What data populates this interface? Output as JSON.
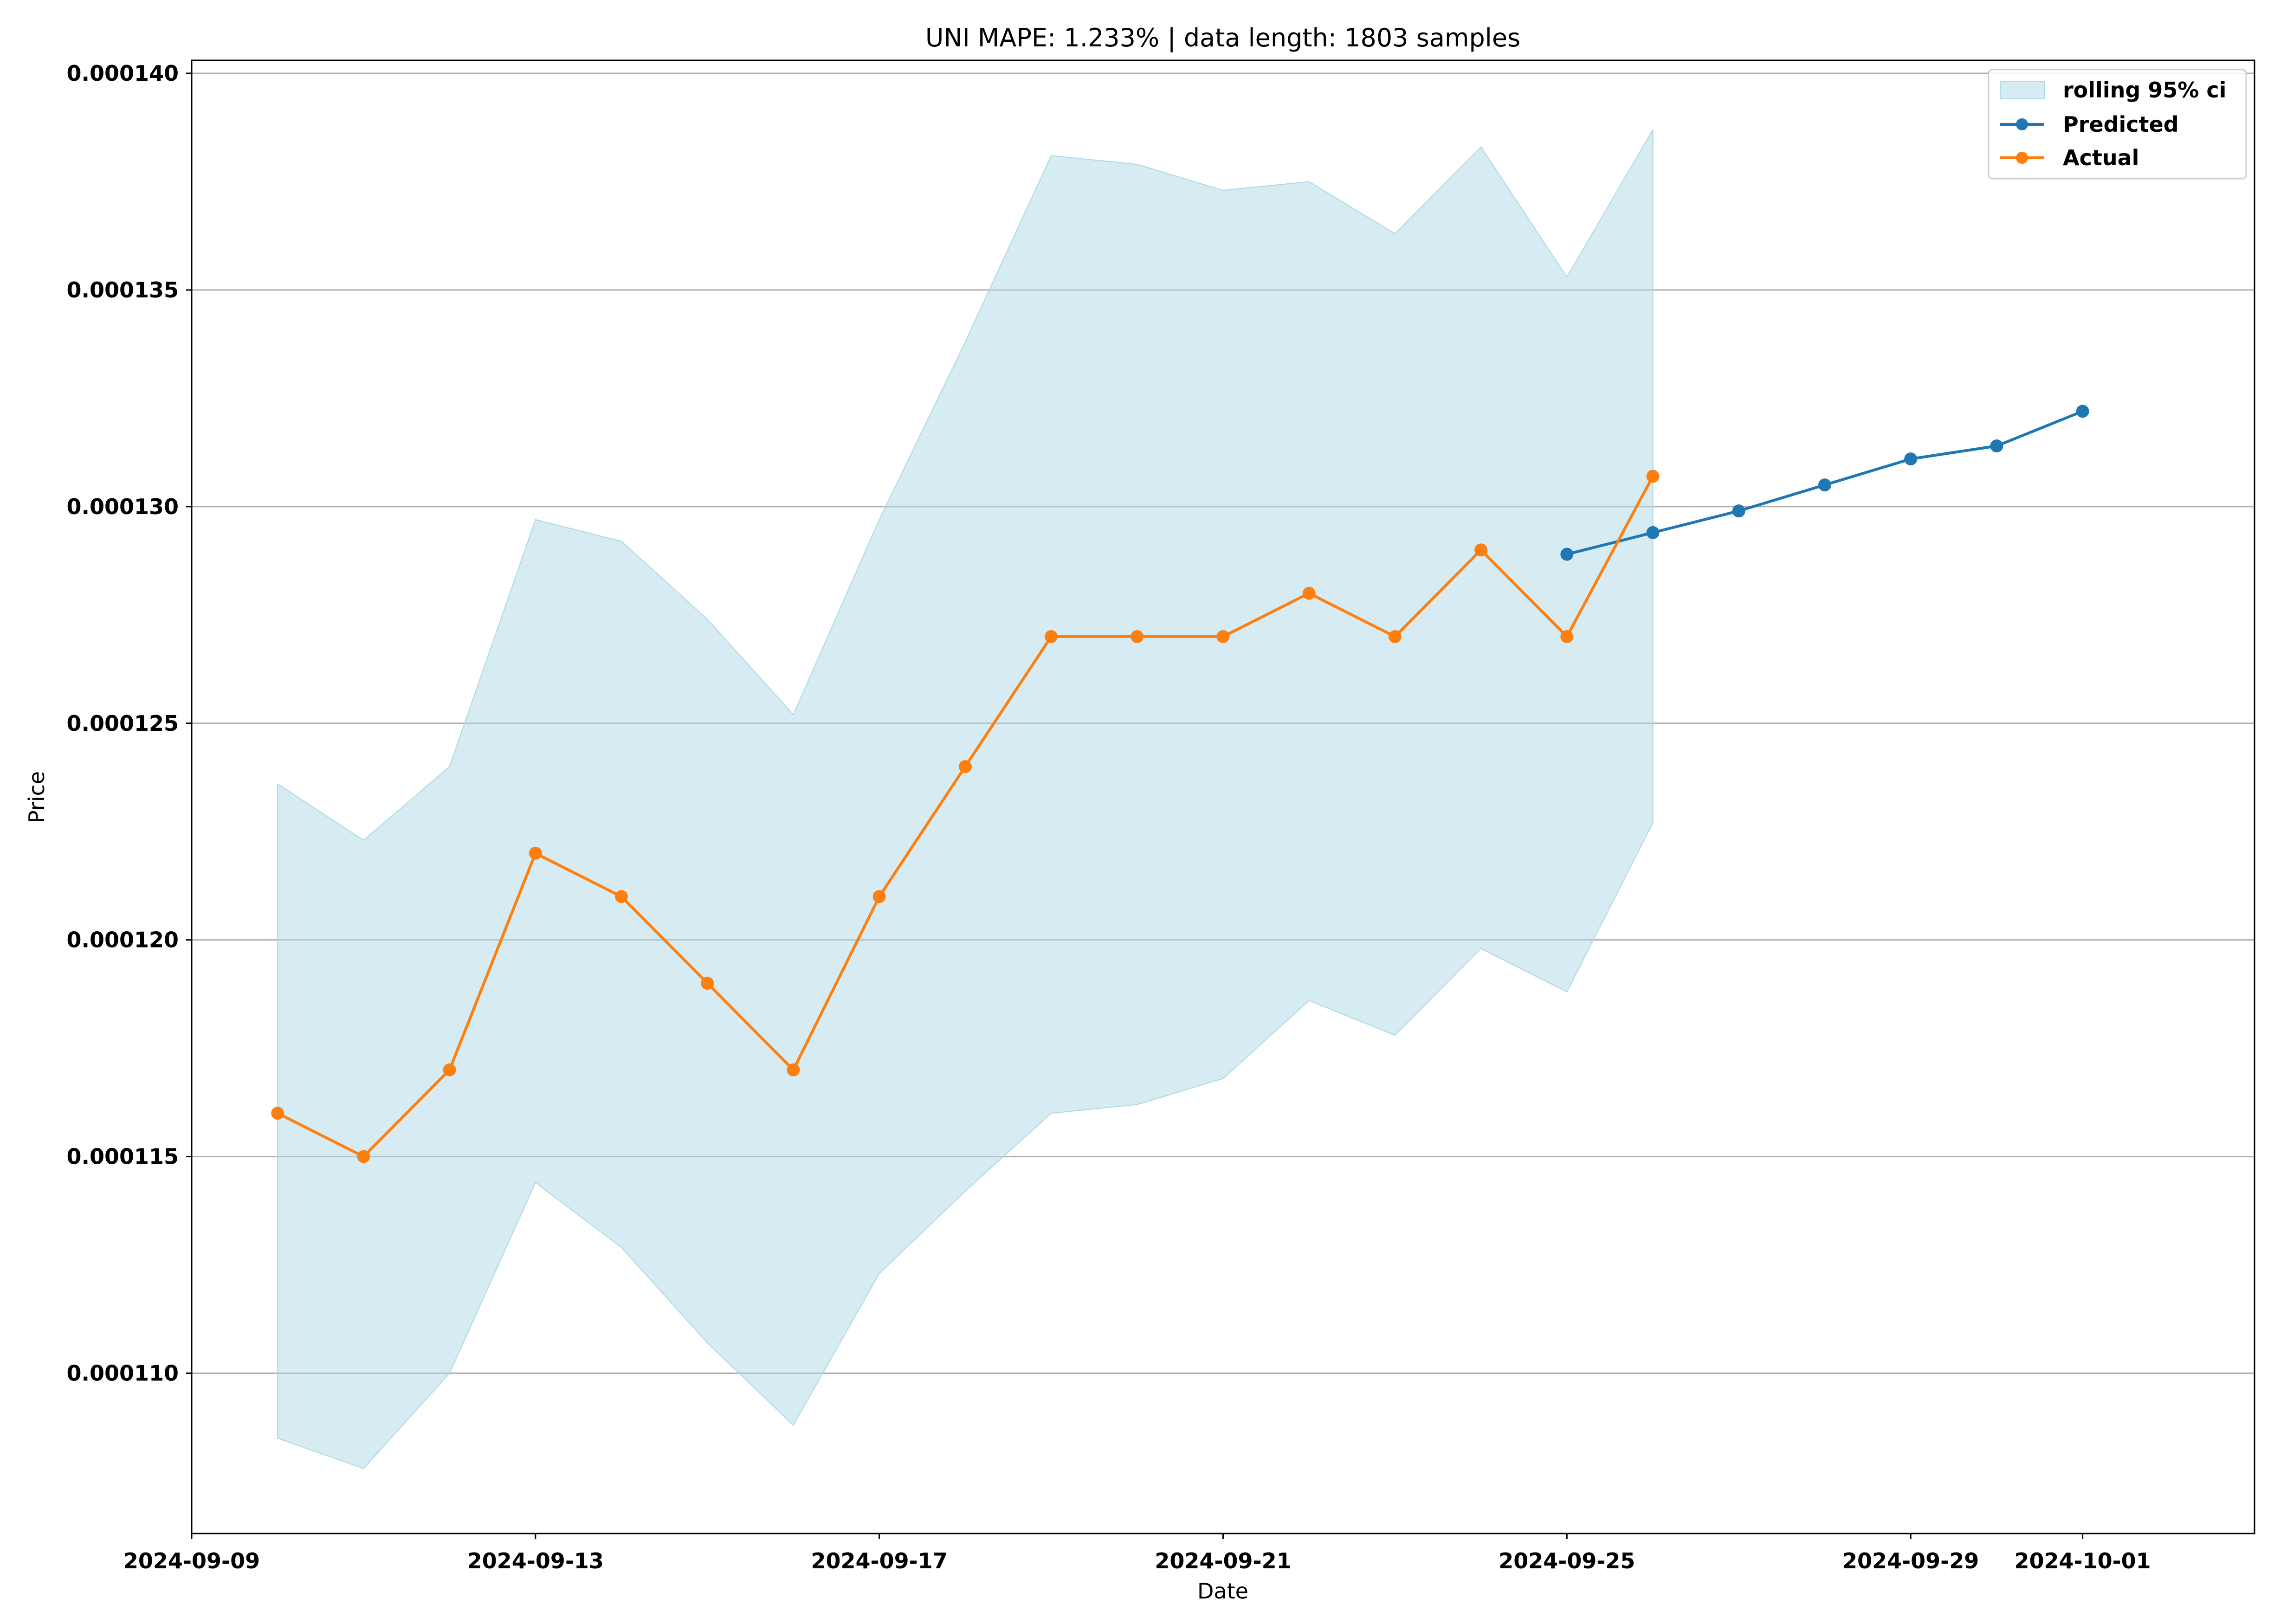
{
  "chart_data": {
    "type": "line",
    "title": "UNI MAPE: 1.233% | data length: 1803 samples",
    "xlabel": "Date",
    "ylabel": "Price",
    "xlim": [
      "2024-09-09",
      "2024-10-03"
    ],
    "ylim": [
      0.0001063,
      0.0001403
    ],
    "grid": "horizontal",
    "legend_position": "top-right",
    "x_ticks": [
      "2024-09-09",
      "2024-09-13",
      "2024-09-17",
      "2024-09-21",
      "2024-09-25",
      "2024-09-29",
      "2024-10-01"
    ],
    "y_ticks": [
      "0.000110",
      "0.000115",
      "0.000120",
      "0.000125",
      "0.000130",
      "0.000135",
      "0.000140"
    ],
    "colors": {
      "band": "#add8e6",
      "predicted": "#1f77b4",
      "actual": "#ff7f0e",
      "grid": "#b0b0b0"
    },
    "band": {
      "name": "rolling 95% ci",
      "x": [
        "2024-09-10",
        "2024-09-11",
        "2024-09-12",
        "2024-09-13",
        "2024-09-14",
        "2024-09-15",
        "2024-09-16",
        "2024-09-17",
        "2024-09-18",
        "2024-09-19",
        "2024-09-20",
        "2024-09-21",
        "2024-09-22",
        "2024-09-23",
        "2024-09-24",
        "2024-09-25",
        "2024-09-26"
      ],
      "lower": [
        0.0001085,
        0.0001078,
        0.00011,
        0.0001144,
        0.0001129,
        0.0001107,
        0.0001088,
        0.0001123,
        0.0001142,
        0.000116,
        0.0001162,
        0.0001168,
        0.0001186,
        0.0001178,
        0.0001198,
        0.0001188,
        0.0001227
      ],
      "upper": [
        0.0001236,
        0.0001223,
        0.000124,
        0.0001297,
        0.0001292,
        0.0001274,
        0.0001252,
        0.0001297,
        0.0001338,
        0.0001381,
        0.0001379,
        0.0001373,
        0.0001375,
        0.0001363,
        0.0001383,
        0.0001353,
        0.0001387
      ]
    },
    "series": [
      {
        "name": "Predicted",
        "x": [
          "2024-09-25",
          "2024-09-26",
          "2024-09-27",
          "2024-09-28",
          "2024-09-29",
          "2024-09-30",
          "2024-10-01"
        ],
        "values": [
          0.0001289,
          0.0001294,
          0.0001299,
          0.0001305,
          0.0001311,
          0.0001314,
          0.0001322
        ]
      },
      {
        "name": "Actual",
        "x": [
          "2024-09-10",
          "2024-09-11",
          "2024-09-12",
          "2024-09-13",
          "2024-09-14",
          "2024-09-15",
          "2024-09-16",
          "2024-09-17",
          "2024-09-18",
          "2024-09-19",
          "2024-09-20",
          "2024-09-21",
          "2024-09-22",
          "2024-09-23",
          "2024-09-24",
          "2024-09-25",
          "2024-09-26"
        ],
        "values": [
          0.000116,
          0.000115,
          0.000117,
          0.000122,
          0.000121,
          0.000119,
          0.000117,
          0.000121,
          0.000124,
          0.000127,
          0.000127,
          0.000127,
          0.000128,
          0.000127,
          0.000129,
          0.000127,
          0.0001307
        ]
      }
    ]
  }
}
